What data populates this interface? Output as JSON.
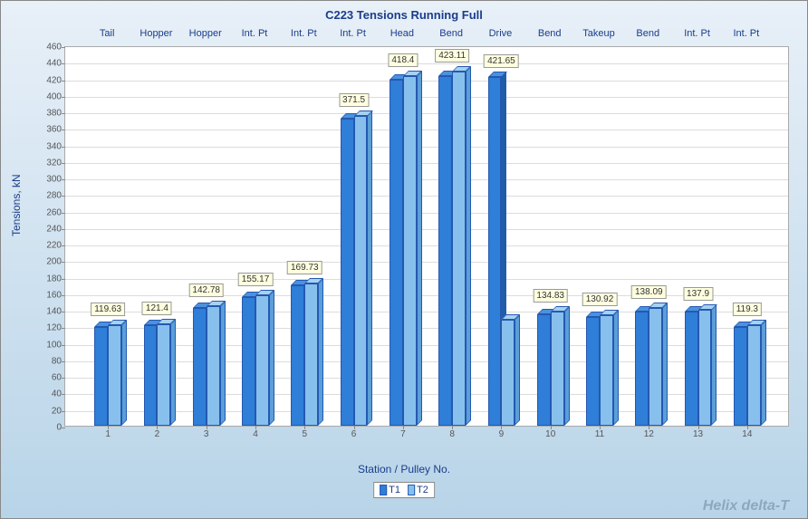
{
  "chart": {
    "type": "bar",
    "title": "C223 Tensions Running Full",
    "title_color": "#1a3d8a",
    "title_fontsize": 13,
    "xlabel": "Station / Pulley No.",
    "ylabel": "Tensions, kN",
    "label_fontsize": 12,
    "label_color": "#1a3d8a",
    "ylim": [
      0,
      460
    ],
    "ytick_step": 20,
    "xlim": [
      1,
      14
    ],
    "background_gradient": [
      "#e8f0f8",
      "#b8d4e8"
    ],
    "plot_bg": "#ffffff",
    "grid_color": "#dcdcdc",
    "border_color": "#aaaaaa",
    "categories": [
      1,
      2,
      3,
      4,
      5,
      6,
      7,
      8,
      9,
      10,
      11,
      12,
      13,
      14
    ],
    "top_labels": [
      "Tail",
      "Hopper",
      "Hopper",
      "Int. Pt",
      "Int. Pt",
      "Int. Pt",
      "Head",
      "Bend",
      "Drive",
      "Bend",
      "Takeup",
      "Bend",
      "Int. Pt",
      "Int. Pt"
    ],
    "series": [
      {
        "name": "T1",
        "color_face": "#2f7ed8",
        "color_top": "#4a92e0",
        "color_side": "#1e5ea8",
        "values": [
          119.63,
          121.4,
          142.78,
          155.17,
          169.73,
          371.5,
          418.4,
          423.11,
          421.65,
          134.83,
          130.92,
          138.09,
          137.9,
          119.3
        ]
      },
      {
        "name": "T2",
        "color_face": "#87c0ed",
        "color_top": "#a5d2f2",
        "color_side": "#5a9fd8",
        "values": [
          121.4,
          122.5,
          145.0,
          158.0,
          172.0,
          375.0,
          423.11,
          428.0,
          128.0,
          138.0,
          134.0,
          142.0,
          140.0,
          122.0
        ]
      }
    ],
    "bar_group_width": 0.55,
    "depth_3d": 6,
    "value_label_bg": "#ffffe0",
    "value_label_border": "#999999",
    "tick_fontsize": 10,
    "tick_color": "#555555"
  },
  "legend": {
    "items": [
      "T1",
      "T2"
    ],
    "colors": [
      "#2f7ed8",
      "#87c0ed"
    ],
    "border_color": "#888888",
    "bg": "#ffffff"
  },
  "watermark": "Helix delta-T"
}
